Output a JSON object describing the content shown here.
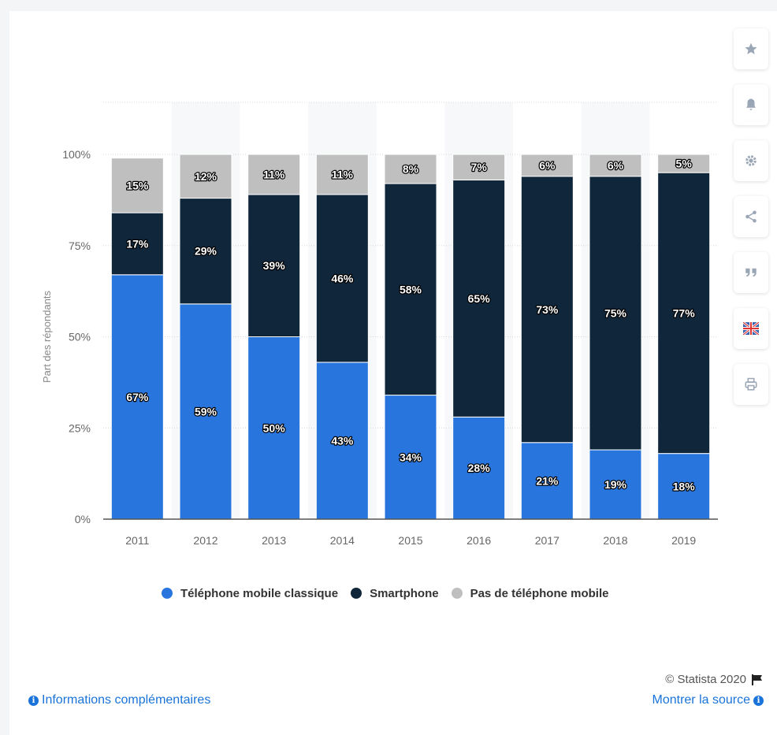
{
  "chart_data": {
    "type": "bar",
    "stacked": true,
    "categories": [
      "2011",
      "2012",
      "2013",
      "2014",
      "2015",
      "2016",
      "2017",
      "2018",
      "2019"
    ],
    "series": [
      {
        "name": "Téléphone mobile classique",
        "color": "#2876dd",
        "values": [
          67,
          59,
          50,
          43,
          34,
          28,
          21,
          19,
          18
        ]
      },
      {
        "name": "Smartphone",
        "color": "#10263b",
        "values": [
          17,
          29,
          39,
          46,
          58,
          65,
          73,
          75,
          77
        ]
      },
      {
        "name": "Pas de téléphone mobile",
        "color": "#bfbfbf",
        "values": [
          15,
          12,
          11,
          11,
          8,
          7,
          6,
          6,
          5
        ]
      }
    ],
    "value_suffix": "%",
    "ylabel": "Part des répondants",
    "yticks": [
      "0%",
      "25%",
      "50%",
      "75%",
      "100%"
    ],
    "ylim": [
      0,
      100
    ],
    "grid": true,
    "legend_position": "bottom-center"
  },
  "toolbar": {
    "buttons": [
      {
        "icon": "star-icon"
      },
      {
        "icon": "bell-icon"
      },
      {
        "icon": "gear-icon"
      },
      {
        "icon": "share-icon"
      },
      {
        "icon": "quote-icon"
      },
      {
        "icon": "flag-uk-icon"
      },
      {
        "icon": "print-icon"
      }
    ]
  },
  "footer": {
    "credits": "© Statista 2020",
    "info_link": "Informations complémentaires",
    "source_link": "Montrer la source"
  }
}
